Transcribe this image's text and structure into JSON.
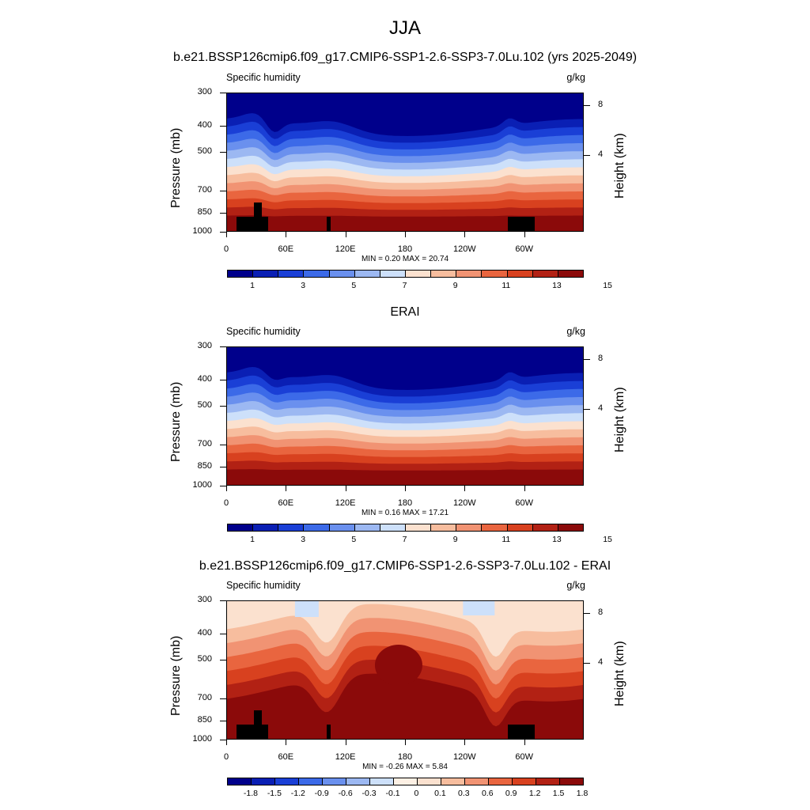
{
  "title": "JJA",
  "subtitle": "b.e21.BSSP126cmip6.f09_g17.CMIP6-SSP1-2.6-SSP3-7.0Lu.102 (yrs 2025-2049)",
  "colors": {
    "abs_palette": [
      "#00008b",
      "#0a1fb4",
      "#1a3fd6",
      "#3c6ae8",
      "#6a90ee",
      "#9cb8f2",
      "#cde0fa",
      "#fbe1cf",
      "#f7bd9e",
      "#f19373",
      "#e9653f",
      "#d8411f",
      "#b22114",
      "#8b0a0a"
    ],
    "diff_palette": [
      "#00008b",
      "#0a1fb4",
      "#1a3fd6",
      "#3c6ae8",
      "#6a90ee",
      "#9cb8f2",
      "#cde0fa",
      "#fdf0e4",
      "#fbe1cf",
      "#f7bd9e",
      "#f19373",
      "#e9653f",
      "#d8411f",
      "#b22114",
      "#8b0a0a"
    ]
  },
  "panels": [
    {
      "id": "model",
      "heading": "",
      "left_label": "Specific humidity",
      "right_label": "g/kg",
      "stats": "MIN =   0.20  MAX =  20.74",
      "colorbar_labels": [
        "1",
        "3",
        "5",
        "7",
        "9",
        "11",
        "13",
        "15"
      ]
    },
    {
      "id": "erai",
      "heading": "ERAI",
      "left_label": "Specific humidity",
      "right_label": "g/kg",
      "stats": "MIN =   0.16  MAX =  17.21",
      "colorbar_labels": [
        "1",
        "3",
        "5",
        "7",
        "9",
        "11",
        "13",
        "15"
      ]
    },
    {
      "id": "diff",
      "heading": "b.e21.BSSP126cmip6.f09_g17.CMIP6-SSP1-2.6-SSP3-7.0Lu.102 - ERAI",
      "left_label": "Specific humidity",
      "right_label": "g/kg",
      "stats": "MIN =  -0.26  MAX =   5.84",
      "colorbar_labels": [
        "-1.8",
        "-1.5",
        "-1.2",
        "-0.9",
        "-0.6",
        "-0.3",
        "-0.1",
        "0",
        "0.1",
        "0.3",
        "0.6",
        "0.9",
        "1.2",
        "1.5",
        "1.8"
      ]
    }
  ],
  "axes": {
    "ylabel": "Pressure (mb)",
    "ylabel_right": "Height (km)",
    "pressure_ticks": [
      "300",
      "400",
      "500",
      "700",
      "850",
      "1000"
    ],
    "height_ticks": [
      "8",
      "4"
    ],
    "lon_ticks": [
      "0",
      "60E",
      "120E",
      "180",
      "120W",
      "60W"
    ]
  },
  "chart_data": [
    {
      "type": "heatmap",
      "title": "JJA",
      "panel": "b.e21.BSSP126cmip6.f09_g17.CMIP6-SSP1-2.6-SSP3-7.0Lu.102 (yrs 2025-2049)",
      "variable": "Specific humidity",
      "units": "g/kg",
      "x": "longitude 0-360",
      "y": "pressure 300-1000 mb",
      "min": 0.2,
      "max": 20.74,
      "contour_levels": [
        1,
        2,
        3,
        4,
        5,
        6,
        7,
        8,
        9,
        10,
        11,
        12,
        13,
        14,
        15
      ]
    },
    {
      "type": "heatmap",
      "panel": "ERAI",
      "variable": "Specific humidity",
      "units": "g/kg",
      "min": 0.16,
      "max": 17.21,
      "contour_levels": [
        1,
        2,
        3,
        4,
        5,
        6,
        7,
        8,
        9,
        10,
        11,
        12,
        13,
        14,
        15
      ]
    },
    {
      "type": "heatmap",
      "panel": "b.e21.BSSP126cmip6.f09_g17.CMIP6-SSP1-2.6-SSP3-7.0Lu.102 - ERAI",
      "variable": "Specific humidity",
      "units": "g/kg",
      "min": -0.26,
      "max": 5.84,
      "contour_levels": [
        -1.8,
        -1.5,
        -1.2,
        -0.9,
        -0.6,
        -0.3,
        -0.1,
        0,
        0.1,
        0.3,
        0.6,
        0.9,
        1.2,
        1.5,
        1.8
      ]
    }
  ]
}
